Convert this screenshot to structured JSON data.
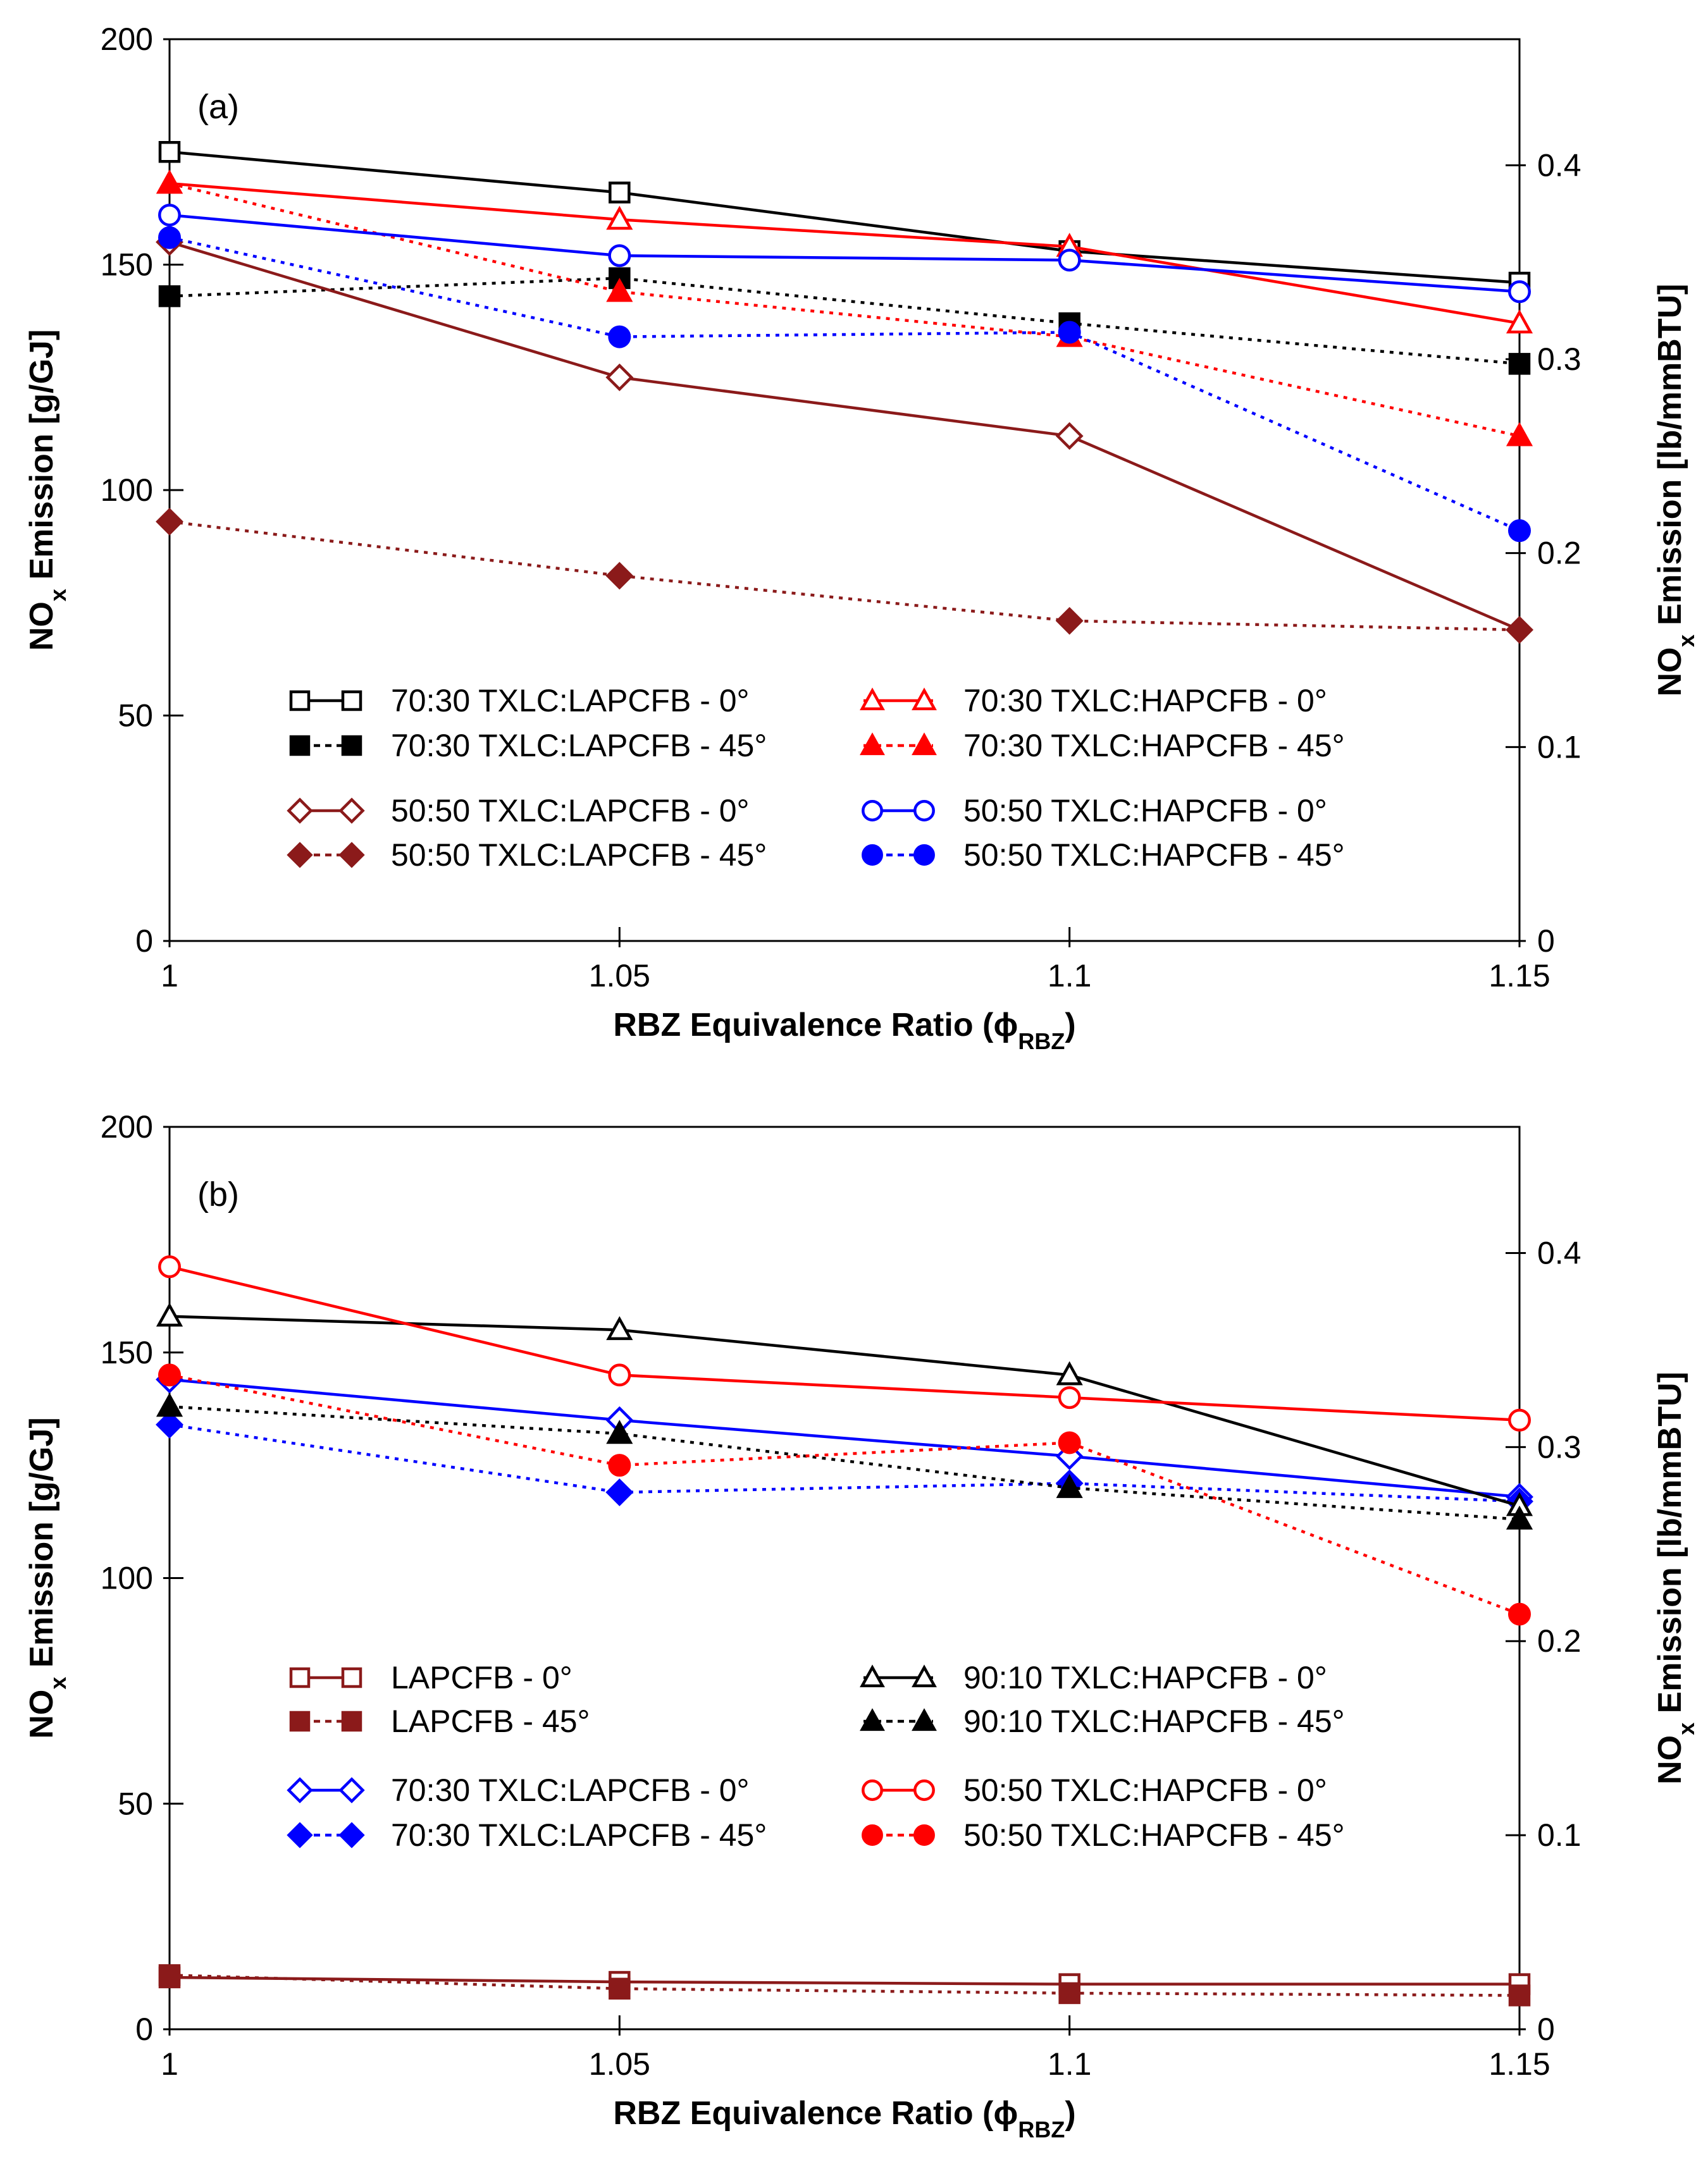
{
  "chart_data": [
    {
      "type": "line",
      "panel_label": "(a)",
      "xlabel": "RBZ Equivalence Ratio (ϕRBZ)",
      "xlabel_parts": {
        "main": "RBZ Equivalence Ratio (",
        "symbol": "ϕ",
        "sub": "RBZ",
        "close": ")"
      },
      "ylabel": "NOx Emission [g/GJ]",
      "ylabel_parts": {
        "a": "NO",
        "sub": "x",
        "b": " Emission [g/GJ]"
      },
      "y2label": "NOx Emission [lb/mmBTU]",
      "y2label_parts": {
        "a": "NO",
        "sub": "x",
        "b": " Emission [lb/mmBTU]"
      },
      "x": [
        1,
        1.05,
        1.1,
        1.15
      ],
      "xtick_labels": [
        "1",
        "1.05",
        "1.1",
        "1.15"
      ],
      "xlim": [
        1,
        1.15
      ],
      "ylim": [
        0,
        200
      ],
      "ytick_labels": [
        "0",
        "50",
        "100",
        "150",
        "200"
      ],
      "y2lim": [
        0,
        0.465
      ],
      "y2tick_labels": [
        "0",
        "0.1",
        "0.2",
        "0.3",
        "0.4"
      ],
      "legend_position": "bottom-center",
      "series": [
        {
          "name": "70:30 TXLC:LAPCFB - 0°",
          "color": "#000000",
          "marker": "square",
          "filled": false,
          "dashed": false,
          "values": [
            175,
            166,
            153,
            146
          ]
        },
        {
          "name": "70:30 TXLC:LAPCFB - 45°",
          "color": "#000000",
          "marker": "square",
          "filled": true,
          "dashed": true,
          "values": [
            143,
            147,
            137,
            128
          ]
        },
        {
          "name": "50:50 TXLC:LAPCFB - 0°",
          "color": "#8b1a1a",
          "marker": "diamond",
          "filled": false,
          "dashed": false,
          "values": [
            155,
            125,
            112,
            69
          ]
        },
        {
          "name": "50:50 TXLC:LAPCFB - 45°",
          "color": "#8b1a1a",
          "marker": "diamond",
          "filled": true,
          "dashed": true,
          "values": [
            93,
            81,
            71,
            69
          ]
        },
        {
          "name": "70:30 TXLC:HAPCFB - 0°",
          "color": "#ff0000",
          "marker": "triangle",
          "filled": false,
          "dashed": false,
          "values": [
            168,
            160,
            154,
            137
          ]
        },
        {
          "name": "70:30 TXLC:HAPCFB - 45°",
          "color": "#ff0000",
          "marker": "triangle",
          "filled": true,
          "dashed": true,
          "values": [
            168,
            144,
            134,
            112
          ]
        },
        {
          "name": "50:50 TXLC:HAPCFB - 0°",
          "color": "#0000ff",
          "marker": "circle",
          "filled": false,
          "dashed": false,
          "values": [
            161,
            152,
            151,
            144
          ]
        },
        {
          "name": "50:50 TXLC:HAPCFB - 45°",
          "color": "#0000ff",
          "marker": "circle",
          "filled": true,
          "dashed": true,
          "values": [
            156,
            134,
            135,
            91
          ]
        }
      ]
    },
    {
      "type": "line",
      "panel_label": "(b)",
      "xlabel": "RBZ Equivalence Ratio (ϕRBZ)",
      "xlabel_parts": {
        "main": "RBZ Equivalence Ratio (",
        "symbol": "ϕ",
        "sub": "RBZ",
        "close": ")"
      },
      "ylabel": "NOx Emission [g/GJ]",
      "ylabel_parts": {
        "a": "NO",
        "sub": "x",
        "b": " Emission [g/GJ]"
      },
      "y2label": "NOx Emission [lb/mmBTU]",
      "y2label_parts": {
        "a": "NO",
        "sub": "x",
        "b": " Emission [lb/mmBTU]"
      },
      "x": [
        1,
        1.05,
        1.1,
        1.15
      ],
      "xtick_labels": [
        "1",
        "1.05",
        "1.1",
        "1.15"
      ],
      "xlim": [
        1,
        1.15
      ],
      "ylim": [
        0,
        200
      ],
      "ytick_labels": [
        "0",
        "50",
        "100",
        "150",
        "200"
      ],
      "y2lim": [
        0,
        0.465
      ],
      "y2tick_labels": [
        "0",
        "0.1",
        "0.2",
        "0.3",
        "0.4"
      ],
      "legend_position": "bottom-center",
      "series": [
        {
          "name": "LAPCFB - 0°",
          "color": "#8b1a1a",
          "marker": "square",
          "filled": false,
          "dashed": false,
          "values": [
            11.5,
            10.5,
            10,
            10
          ]
        },
        {
          "name": "LAPCFB - 45°",
          "color": "#8b1a1a",
          "marker": "square",
          "filled": true,
          "dashed": true,
          "values": [
            12,
            9,
            8,
            7.5
          ]
        },
        {
          "name": "70:30 TXLC:LAPCFB - 0°",
          "color": "#0000ff",
          "marker": "diamond",
          "filled": false,
          "dashed": false,
          "values": [
            144,
            135,
            127,
            118
          ]
        },
        {
          "name": "70:30 TXLC:LAPCFB - 45°",
          "color": "#0000ff",
          "marker": "diamond",
          "filled": true,
          "dashed": true,
          "values": [
            134,
            119,
            121,
            117
          ]
        },
        {
          "name": "90:10 TXLC:HAPCFB - 0°",
          "color": "#000000",
          "marker": "triangle",
          "filled": false,
          "dashed": false,
          "values": [
            158,
            155,
            145,
            116
          ]
        },
        {
          "name": "90:10 TXLC:HAPCFB - 45°",
          "color": "#000000",
          "marker": "triangle",
          "filled": true,
          "dashed": true,
          "values": [
            138,
            132,
            120,
            113
          ]
        },
        {
          "name": "50:50 TXLC:HAPCFB - 0°",
          "color": "#ff0000",
          "marker": "circle",
          "filled": false,
          "dashed": false,
          "values": [
            169,
            145,
            140,
            135
          ]
        },
        {
          "name": "50:50 TXLC:HAPCFB - 45°",
          "color": "#ff0000",
          "marker": "circle",
          "filled": true,
          "dashed": true,
          "values": [
            145,
            125,
            130,
            92
          ]
        }
      ]
    }
  ]
}
